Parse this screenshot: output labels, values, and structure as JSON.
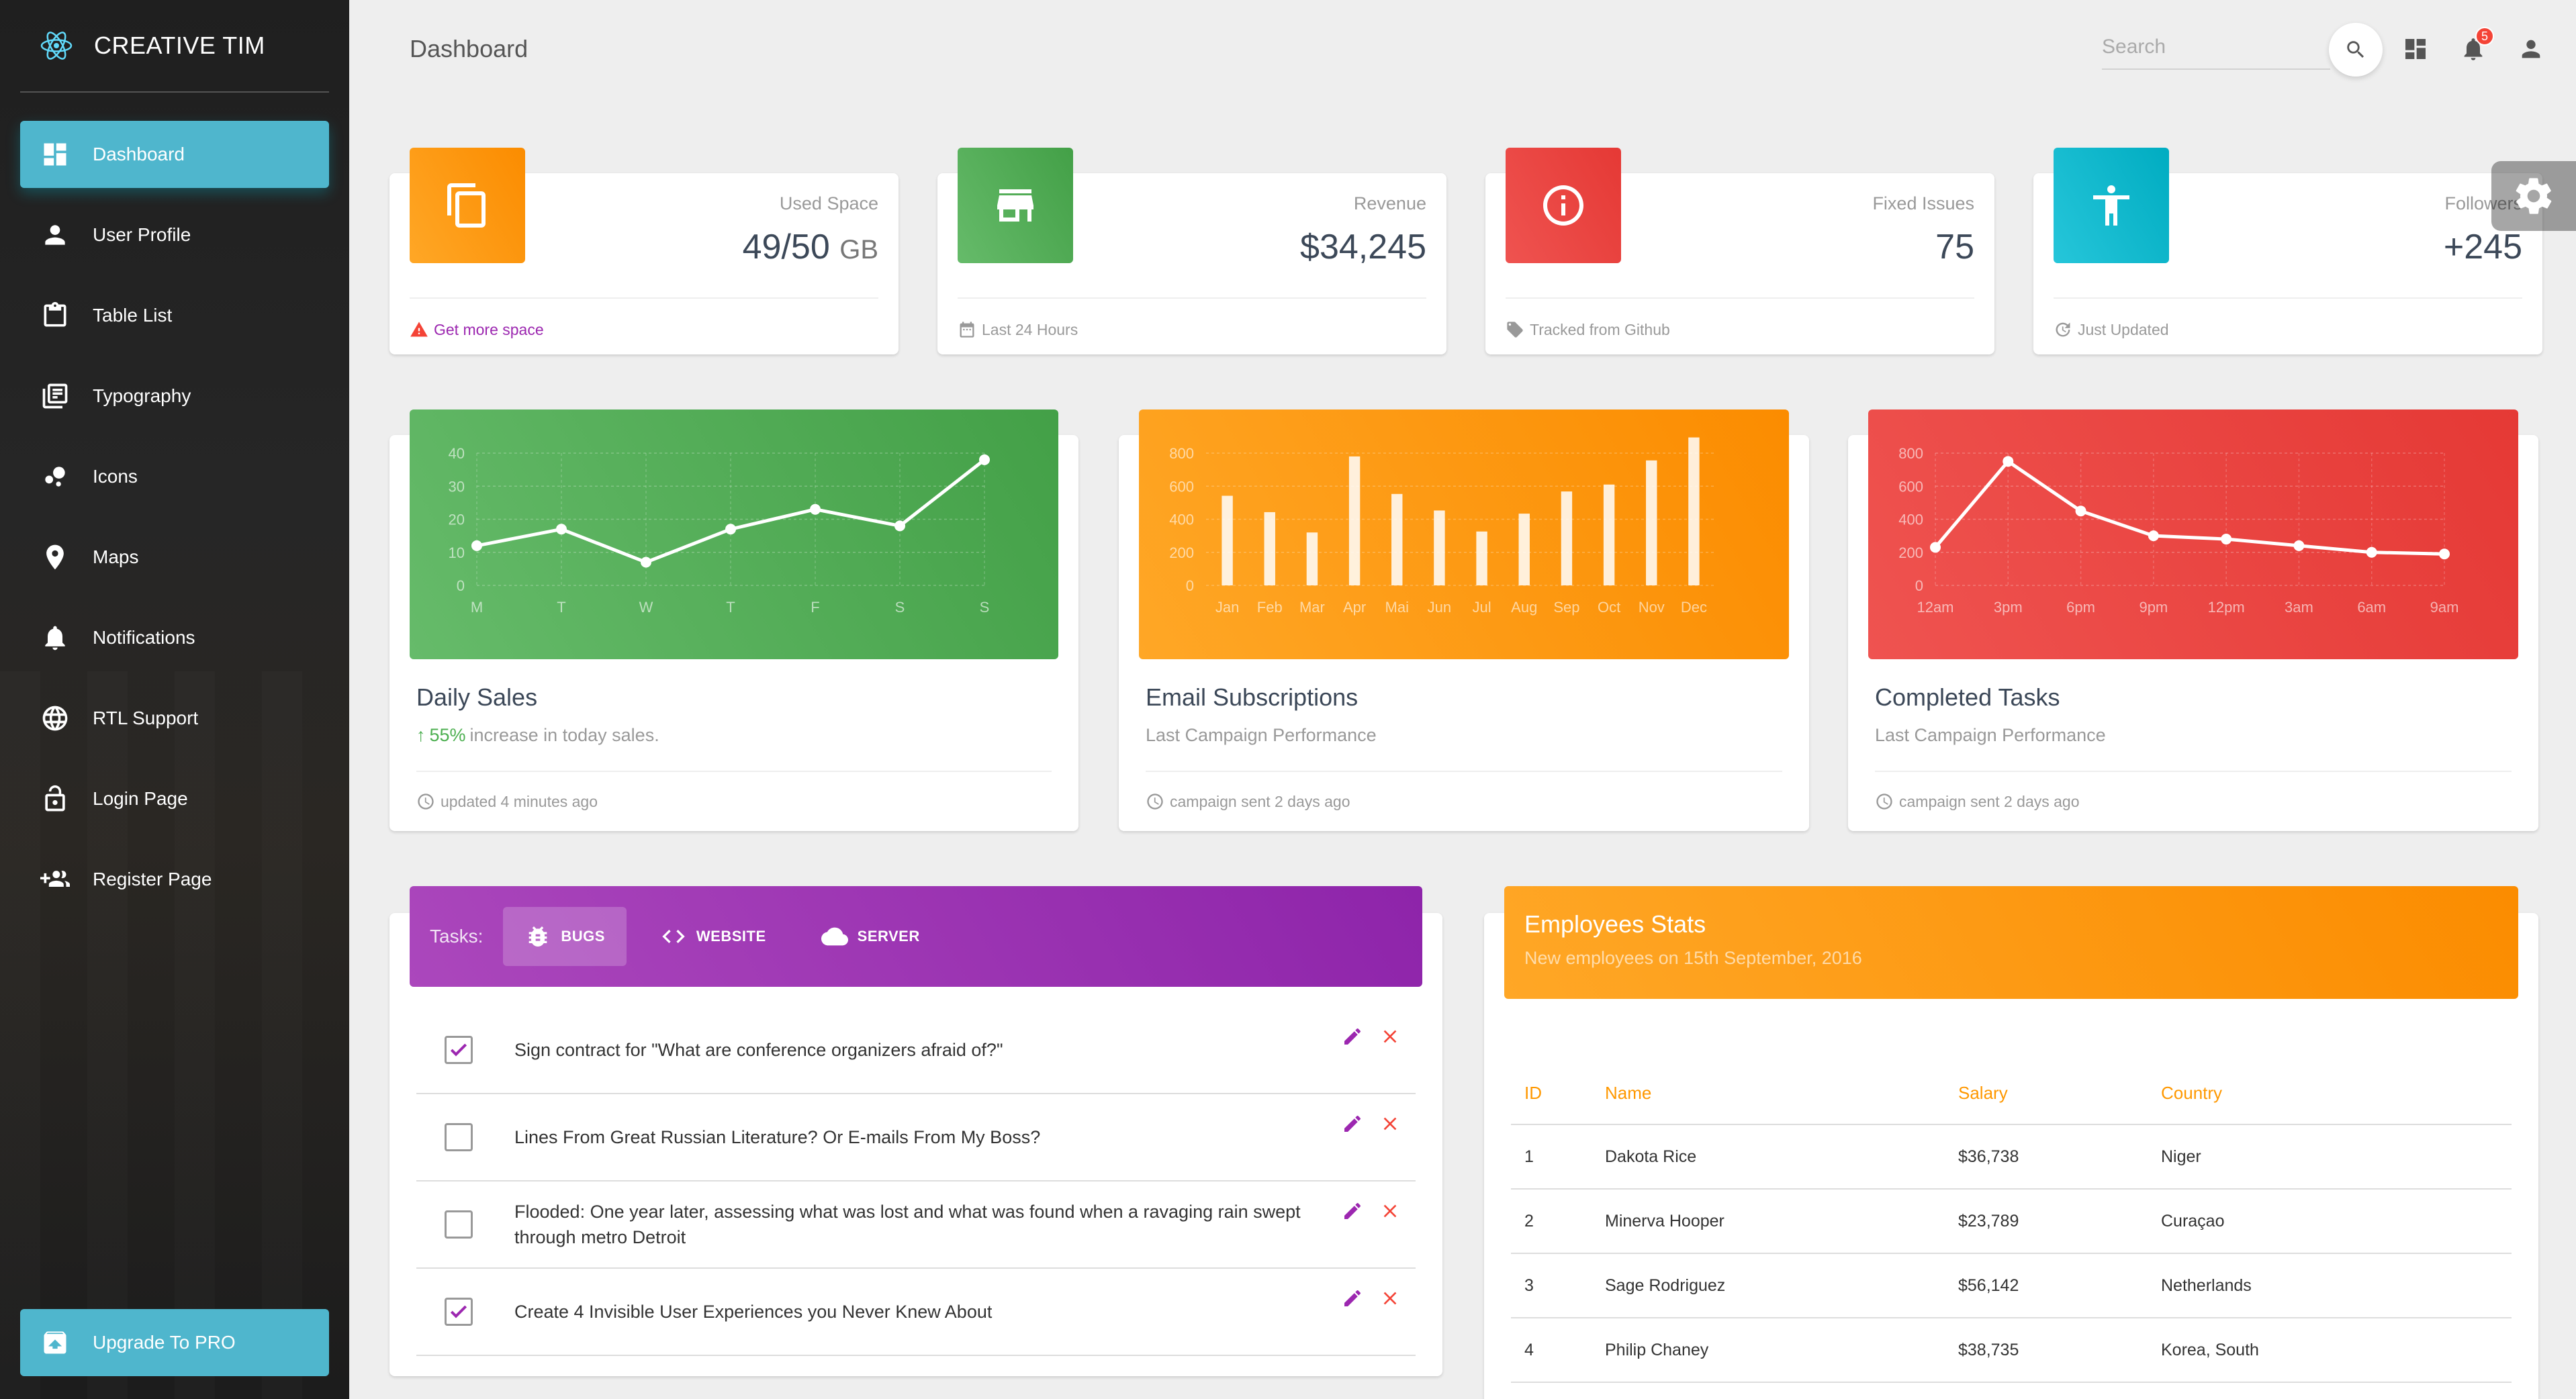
{
  "brand": {
    "name": "CREATIVE TIM"
  },
  "sidebar": {
    "items": [
      {
        "label": "Dashboard",
        "icon": "dashboard-icon"
      },
      {
        "label": "User Profile",
        "icon": "person-icon"
      },
      {
        "label": "Table List",
        "icon": "clipboard-icon"
      },
      {
        "label": "Typography",
        "icon": "library-books-icon"
      },
      {
        "label": "Icons",
        "icon": "bubble-chart-icon"
      },
      {
        "label": "Maps",
        "icon": "location-pin-icon"
      },
      {
        "label": "Notifications",
        "icon": "bell-icon"
      },
      {
        "label": "RTL Support",
        "icon": "globe-icon"
      },
      {
        "label": "Login Page",
        "icon": "lock-icon"
      },
      {
        "label": "Register Page",
        "icon": "group-add-icon"
      }
    ],
    "upgrade": {
      "label": "Upgrade To PRO",
      "icon": "unarchive-icon"
    }
  },
  "header": {
    "title": "Dashboard",
    "search_placeholder": "Search",
    "notifications_count": "5"
  },
  "stats": [
    {
      "category": "Used Space",
      "value": "49/50",
      "unit": "GB",
      "footer": "Get more space",
      "color": "#fb8c00",
      "icon": "content-copy-icon",
      "footer_icon": "warning-icon"
    },
    {
      "category": "Revenue",
      "value": "$34,245",
      "footer": "Last 24 Hours",
      "color": "#43a047",
      "icon": "store-icon",
      "footer_icon": "date-range-icon"
    },
    {
      "category": "Fixed Issues",
      "value": "75",
      "footer": "Tracked from Github",
      "color": "#e53935",
      "icon": "info-outline-icon",
      "footer_icon": "local-offer-icon"
    },
    {
      "category": "Followers",
      "value": "+245",
      "footer": "Just Updated",
      "color": "#00acc1",
      "icon": "accessibility-icon",
      "footer_icon": "update-icon"
    }
  ],
  "charts": [
    {
      "title": "Daily Sales",
      "subtitle_highlight": "55%",
      "subtitle_rest": " increase in today sales.",
      "footer": "updated 4 minutes ago",
      "color": "#4caf50"
    },
    {
      "title": "Email Subscriptions",
      "subtitle_rest": "Last Campaign Performance",
      "footer": "campaign sent 2 days ago",
      "color": "#fb8c00"
    },
    {
      "title": "Completed Tasks",
      "subtitle_rest": "Last Campaign Performance",
      "footer": "campaign sent 2 days ago",
      "color": "#e53935"
    }
  ],
  "chart_data": [
    {
      "type": "line",
      "categories": [
        "M",
        "T",
        "W",
        "T",
        "F",
        "S",
        "S"
      ],
      "values": [
        12,
        17,
        7,
        17,
        23,
        18,
        38
      ],
      "ylim": [
        0,
        40
      ],
      "yticks": [
        "0",
        "10",
        "20",
        "30",
        "40"
      ],
      "grid": true
    },
    {
      "type": "bar",
      "categories": [
        "Jan",
        "Feb",
        "Mar",
        "Apr",
        "Mai",
        "Jun",
        "Jul",
        "Aug",
        "Sep",
        "Oct",
        "Nov",
        "Dec"
      ],
      "values": [
        542,
        443,
        320,
        780,
        553,
        453,
        326,
        434,
        568,
        610,
        756,
        895
      ],
      "ylim": [
        0,
        800
      ],
      "yticks": [
        "0",
        "200",
        "400",
        "600",
        "800"
      ],
      "grid": true
    },
    {
      "type": "line",
      "categories": [
        "12am",
        "3pm",
        "6pm",
        "9pm",
        "12pm",
        "3am",
        "6am",
        "9am"
      ],
      "values": [
        230,
        750,
        450,
        300,
        280,
        240,
        200,
        190
      ],
      "ylim": [
        0,
        800
      ],
      "yticks": [
        "0",
        "200",
        "400",
        "600",
        "800"
      ],
      "grid": true
    }
  ],
  "tasks": {
    "label": "Tasks:",
    "tabs": [
      {
        "label": "BUGS",
        "icon": "bug-icon"
      },
      {
        "label": "WEBSITE",
        "icon": "code-icon"
      },
      {
        "label": "SERVER",
        "icon": "cloud-icon"
      }
    ],
    "items": [
      {
        "text": "Sign contract for \"What are conference organizers afraid of?\"",
        "checked": true
      },
      {
        "text": "Lines From Great Russian Literature? Or E-mails From My Boss?",
        "checked": false
      },
      {
        "text": "Flooded: One year later, assessing what was lost and what was found when a ravaging rain swept through metro Detroit",
        "checked": false
      },
      {
        "text": "Create 4 Invisible User Experiences you Never Knew About",
        "checked": true
      }
    ]
  },
  "employees": {
    "title": "Employees Stats",
    "subtitle": "New employees on 15th September, 2016",
    "columns": [
      "ID",
      "Name",
      "Salary",
      "Country"
    ],
    "rows": [
      [
        "1",
        "Dakota Rice",
        "$36,738",
        "Niger"
      ],
      [
        "2",
        "Minerva Hooper",
        "$23,789",
        "Curaçao"
      ],
      [
        "3",
        "Sage Rodriguez",
        "$56,142",
        "Netherlands"
      ],
      [
        "4",
        "Philip Chaney",
        "$38,735",
        "Korea, South"
      ]
    ]
  }
}
